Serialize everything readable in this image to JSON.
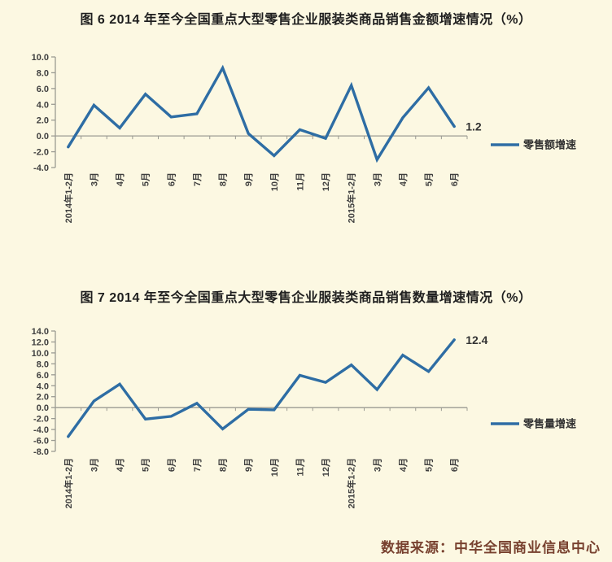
{
  "colors": {
    "background": "#fcf8e2",
    "line": "#2e6da4",
    "axis": "#9b9b93",
    "tick_label": "#3f3f3f",
    "title": "#1f1f1f",
    "value_label": "#333333",
    "footer_text": "#78412f"
  },
  "footer": {
    "text": "数据来源：中华全国商业信息中心"
  },
  "chart_data": [
    {
      "type": "line",
      "title": "图 6  2014 年至今全国重点大型零售企业服装类商品销售金额增速情况（%）",
      "categories": [
        "2014年1-2月",
        "3月",
        "4月",
        "5月",
        "6月",
        "7月",
        "8月",
        "9月",
        "10月",
        "11月",
        "12月",
        "2015年1-2月",
        "3月",
        "4月",
        "5月",
        "6月"
      ],
      "series": [
        {
          "name": "零售额增速",
          "values": [
            -1.4,
            3.9,
            1.0,
            5.3,
            2.4,
            2.8,
            8.6,
            0.3,
            -2.5,
            0.8,
            -0.3,
            6.4,
            -3.0,
            2.3,
            6.1,
            1.2
          ]
        }
      ],
      "ylim": [
        -4,
        10
      ],
      "ytick_step": 2,
      "grid": false,
      "legend_position": "right",
      "last_point_label": "1.2",
      "xlabel": "",
      "ylabel": ""
    },
    {
      "type": "line",
      "title": "图 7  2014 年至今全国重点大型零售企业服装类商品销售数量增速情况（%）",
      "categories": [
        "2014年1-2月",
        "3月",
        "4月",
        "5月",
        "6月",
        "7月",
        "8月",
        "9月",
        "10月",
        "11月",
        "12月",
        "2015年1-2月",
        "3月",
        "4月",
        "5月",
        "6月"
      ],
      "series": [
        {
          "name": "零售量增速",
          "values": [
            -5.3,
            1.2,
            4.3,
            -2.1,
            -1.6,
            0.8,
            -3.9,
            -0.3,
            -0.4,
            5.9,
            4.6,
            7.8,
            3.3,
            9.6,
            6.6,
            12.4
          ]
        }
      ],
      "ylim": [
        -8,
        14
      ],
      "ytick_step": 2,
      "grid": false,
      "legend_position": "right",
      "last_point_label": "12.4",
      "xlabel": "",
      "ylabel": ""
    }
  ]
}
